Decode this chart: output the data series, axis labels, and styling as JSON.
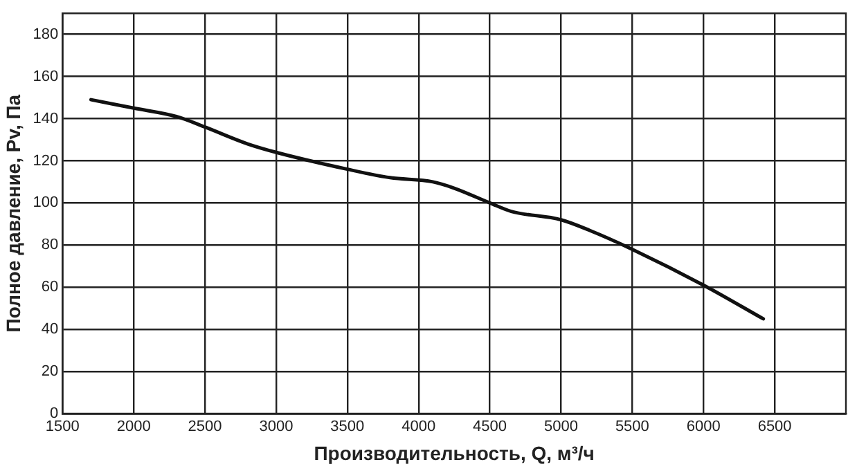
{
  "chart_data": {
    "type": "line",
    "xlabel": "Производительность, Q, м³/ч",
    "ylabel": "Полное давление, Pv, Па",
    "series": [
      {
        "color": "#111111",
        "x": [
          1700,
          2000,
          2300,
          2500,
          2800,
          3000,
          3500,
          3800,
          4100,
          4250,
          4500,
          4650,
          5000,
          5200,
          5500,
          6000,
          6420
        ],
        "values": [
          149,
          145,
          141,
          136,
          128,
          124,
          116,
          112,
          110,
          107,
          100,
          96,
          92,
          87,
          78,
          61,
          45
        ]
      }
    ],
    "xlim": [
      1500,
      7000
    ],
    "xticks": [
      1500,
      2000,
      2500,
      3000,
      3500,
      4000,
      4500,
      5000,
      5500,
      6000,
      6500
    ],
    "ylim": [
      0,
      190
    ],
    "yticks": [
      0,
      20,
      40,
      60,
      80,
      100,
      120,
      140,
      160,
      180
    ],
    "grid": true,
    "legend": false,
    "marker": "none",
    "line_style": "solid"
  }
}
